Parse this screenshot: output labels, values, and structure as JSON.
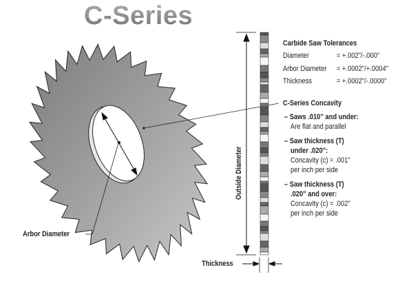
{
  "title": "C-Series",
  "labels": {
    "outside_diameter": "Outside Diameter",
    "arbor_diameter": "Arbor Diameter",
    "thickness": "Thickness"
  },
  "tolerances": {
    "heading": "Carbide Saw Tolerances",
    "rows": [
      {
        "name": "Diameter",
        "value": "= +.002\"/-.000\""
      },
      {
        "name": "Arbor Diameter",
        "value": "= +.0002\"/+.0004\""
      },
      {
        "name": "Thickness",
        "value": "= +.0002\"/-.0000\""
      }
    ]
  },
  "concavity": {
    "heading": "C-Series Concavity",
    "items": [
      {
        "bold": [
          "– Saws .010\" and under:"
        ],
        "normal": [
          "Are flat and parallel"
        ]
      },
      {
        "bold": [
          "– Saw thickness (T)",
          "under .020\":"
        ],
        "normal": [
          "Concavity (c) = .001\"",
          "per inch per side"
        ]
      },
      {
        "bold": [
          "– Saw thickness (T)",
          ".020\" and over:"
        ],
        "normal": [
          "Concavity (c) = .002\"",
          "per inch per side"
        ]
      }
    ]
  }
}
